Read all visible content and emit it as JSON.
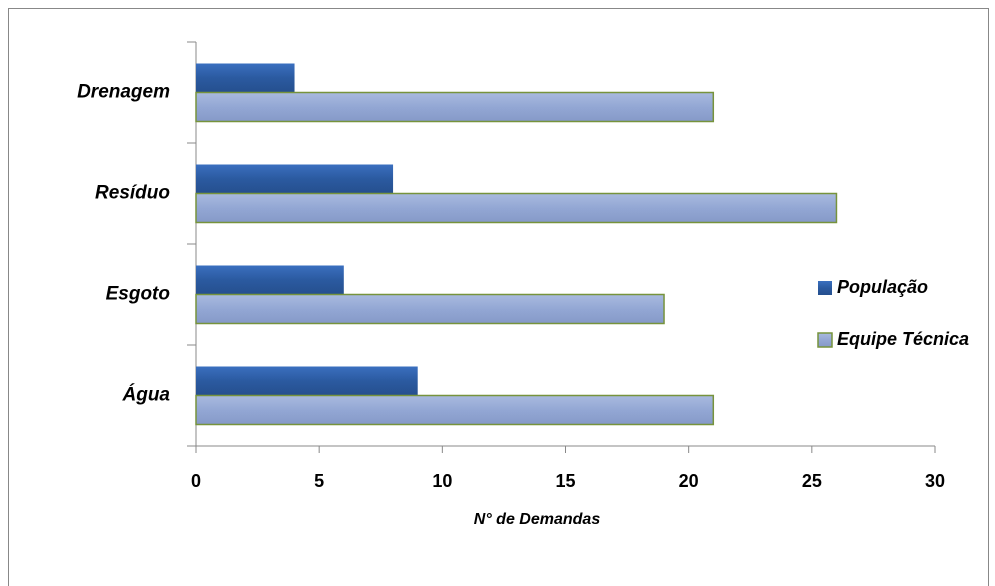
{
  "chart_data": {
    "type": "bar",
    "orientation": "horizontal",
    "categories": [
      "Água",
      "Esgoto",
      "Resíduo",
      "Drenagem"
    ],
    "series": [
      {
        "name": "População",
        "color": "#2f5fa6",
        "values": [
          9,
          6,
          8,
          4
        ]
      },
      {
        "name": "Equipe Técnica",
        "color": "#95a9d6",
        "values": [
          21,
          19,
          26,
          21
        ]
      }
    ],
    "xlabel": "N° de Demandas",
    "xlim": [
      0,
      30
    ],
    "xticks": [
      0,
      5,
      10,
      15,
      20,
      25,
      30
    ],
    "legend": "right",
    "grid": false
  }
}
